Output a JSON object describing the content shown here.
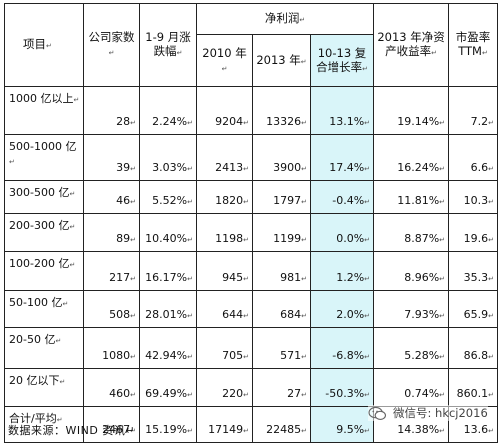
{
  "header": {
    "project": "项目",
    "companies": "公司家数",
    "change": "1-9 月涨跌幅",
    "net_profit": "净利润",
    "y2010": "2010 年",
    "y2013": "2013 年",
    "cagr": "10-13 复合增长率",
    "roe": "2013 年净资产收益率",
    "pe": "市盈率 TTM",
    "mark": "↵"
  },
  "rows": [
    {
      "label": "1000 亿以上",
      "count": "28",
      "change": "2.24%",
      "p2010": "9204",
      "p2013": "13326",
      "cagr": "13.1%",
      "roe": "19.14%",
      "pe": "7.2"
    },
    {
      "label": "500-1000 亿",
      "count": "39",
      "change": "3.03%",
      "p2010": "2413",
      "p2013": "3900",
      "cagr": "17.4%",
      "roe": "16.24%",
      "pe": "6.6"
    },
    {
      "label": "300-500 亿",
      "count": "46",
      "change": "5.52%",
      "p2010": "1820",
      "p2013": "1797",
      "cagr": "-0.4%",
      "roe": "11.81%",
      "pe": "10.3"
    },
    {
      "label": "200-300 亿",
      "count": "89",
      "change": "10.40%",
      "p2010": "1198",
      "p2013": "1199",
      "cagr": "0.0%",
      "roe": "8.87%",
      "pe": "19.6"
    },
    {
      "label": "100-200 亿",
      "count": "217",
      "change": "16.17%",
      "p2010": "945",
      "p2013": "981",
      "cagr": "1.2%",
      "roe": "8.96%",
      "pe": "35.3"
    },
    {
      "label": "50-100 亿",
      "count": "508",
      "change": "28.01%",
      "p2010": "644",
      "p2013": "684",
      "cagr": "2.0%",
      "roe": "7.93%",
      "pe": "65.9"
    },
    {
      "label": "20-50 亿",
      "count": "1080",
      "change": "42.94%",
      "p2010": "705",
      "p2013": "571",
      "cagr": "-6.8%",
      "roe": "5.28%",
      "pe": "86.8"
    },
    {
      "label": "20 亿以下",
      "count": "460",
      "change": "69.49%",
      "p2010": "220",
      "p2013": "27",
      "cagr": "-50.3%",
      "roe": "0.74%",
      "pe": "860.1"
    },
    {
      "label": "合计/平均",
      "count": "2467",
      "change": "15.19%",
      "p2010": "17149",
      "p2013": "22485",
      "cagr": "9.5%",
      "roe": "14.38%",
      "pe": "13.6"
    }
  ],
  "source": "数据来源：WIND 资讯↵",
  "watermark": {
    "text": "微信号: hkcj2016",
    "icon": "wechat-icon"
  },
  "colors": {
    "highlight": "#d9f5f9",
    "border": "#222222"
  }
}
